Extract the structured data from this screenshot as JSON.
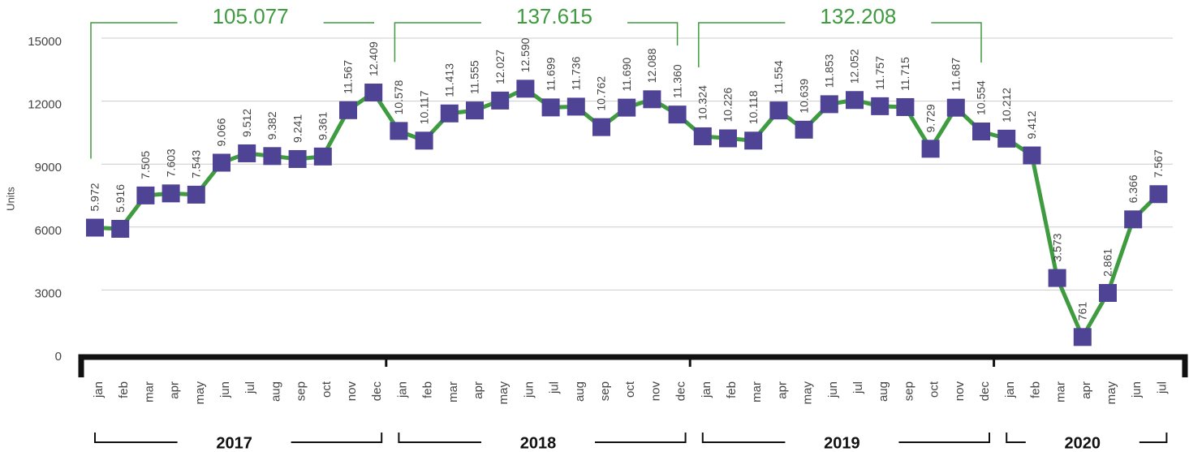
{
  "chart_data": {
    "type": "line",
    "y_label": "Units",
    "ylim": [
      0,
      15000
    ],
    "yticks": [
      0,
      3000,
      6000,
      9000,
      12000,
      15000
    ],
    "grid": true,
    "line_color": "#3f9b3f",
    "marker_color": "#4e4394",
    "groups": [
      {
        "label": "2017",
        "total_label": "105.077",
        "categories": [
          "jan",
          "feb",
          "mar",
          "apr",
          "may",
          "jun",
          "jul",
          "aug",
          "sep",
          "oct",
          "nov",
          "dec"
        ],
        "values": [
          5972,
          5916,
          7505,
          7603,
          7543,
          9066,
          9512,
          9382,
          9241,
          9361,
          11567,
          12409
        ],
        "value_labels": [
          "5.972",
          "5.916",
          "7.505",
          "7.603",
          "7.543",
          "9.066",
          "9.512",
          "9.382",
          "9.241",
          "9.361",
          "11.567",
          "12.409"
        ]
      },
      {
        "label": "2018",
        "total_label": "137.615",
        "categories": [
          "jan",
          "feb",
          "mar",
          "apr",
          "may",
          "jun",
          "jul",
          "aug",
          "sep",
          "oct",
          "nov",
          "dec"
        ],
        "values": [
          10578,
          10117,
          11413,
          11555,
          12027,
          12590,
          11699,
          11736,
          10762,
          11690,
          12088,
          11360
        ],
        "value_labels": [
          "10.578",
          "10.117",
          "11.413",
          "11.555",
          "12.027",
          "12.590",
          "11.699",
          "11.736",
          "10.762",
          "11.690",
          "12.088",
          "11.360"
        ]
      },
      {
        "label": "2019",
        "total_label": "132.208",
        "categories": [
          "jan",
          "feb",
          "mar",
          "apr",
          "may",
          "jun",
          "jul",
          "aug",
          "sep",
          "oct",
          "nov",
          "dec"
        ],
        "values": [
          10324,
          10226,
          10118,
          11554,
          10639,
          11853,
          12052,
          11757,
          11715,
          9729,
          11687,
          10554
        ],
        "value_labels": [
          "10.324",
          "10.226",
          "10.118",
          "11.554",
          "10.639",
          "11.853",
          "12.052",
          "11.757",
          "11.715",
          "9.729",
          "11.687",
          "10.554"
        ]
      },
      {
        "label": "2020",
        "categories": [
          "jan",
          "feb",
          "mar",
          "apr",
          "may",
          "jun",
          "jul"
        ],
        "values": [
          10212,
          9412,
          3573,
          761,
          2861,
          6366,
          7567
        ],
        "value_labels": [
          "10.212",
          "9.412",
          "3.573",
          "761",
          "2.861",
          "6.366",
          "7.567"
        ]
      }
    ]
  }
}
